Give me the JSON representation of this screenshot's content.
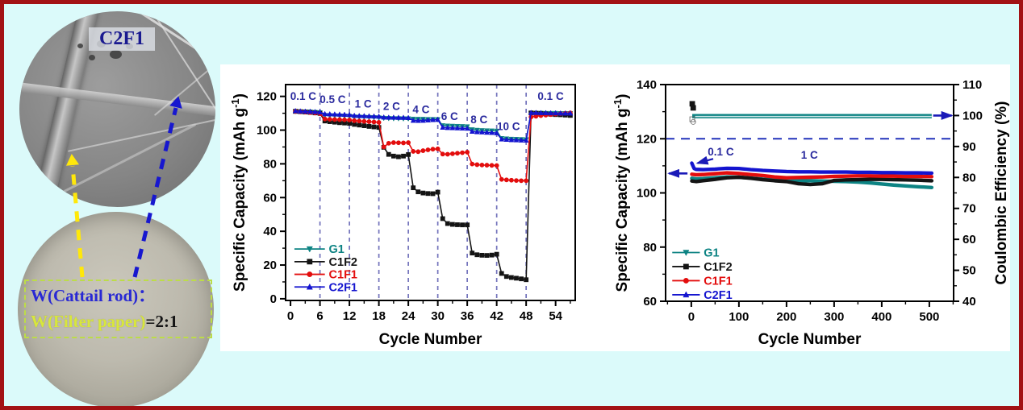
{
  "left_panel": {
    "sem_label": "C2F1",
    "ratio_line1": "W(Cattail rod)：",
    "ratio_line2_colored": "W(Filter paper)",
    "ratio_line2_suffix": "=2:1",
    "colors": {
      "sem_label_text": "#1a1a90",
      "line1": "#2929d4",
      "line2": "#d8e73c",
      "suffix": "#141414",
      "box_border": "#bcdc48",
      "arrow_yellow": "#ffe80a",
      "arrow_blue": "#1717cf"
    }
  },
  "frame": {
    "background": "#dbfafa",
    "border": "#a21114",
    "panel": "#ffffff"
  },
  "chart_data": [
    {
      "id": "rate-capability",
      "type": "line",
      "xlabel": "Cycle Number",
      "ylabel": "Specific Capacity (mAh g⁻¹)",
      "xlim": [
        -1,
        58
      ],
      "ylim": [
        -1,
        127
      ],
      "xticks": [
        0,
        6,
        12,
        18,
        24,
        30,
        36,
        42,
        48,
        54
      ],
      "yticks": [
        0,
        20,
        40,
        60,
        80,
        100,
        120
      ],
      "x_minor": 3,
      "y_minor": 10,
      "grid": false,
      "dashed_vlines": [
        6,
        12,
        18,
        24,
        30,
        36,
        42,
        48
      ],
      "vline_color": "#7272bb",
      "rate_label_color": "#2a2a9e",
      "rate_labels": [
        {
          "text": "0.1 C",
          "x": 2.6,
          "y": 118
        },
        {
          "text": "0.5 C",
          "x": 8.6,
          "y": 116
        },
        {
          "text": "1 C",
          "x": 14.8,
          "y": 113.5
        },
        {
          "text": "2 C",
          "x": 20.6,
          "y": 112
        },
        {
          "text": "4 C",
          "x": 26.6,
          "y": 110
        },
        {
          "text": "6 C",
          "x": 32.4,
          "y": 106
        },
        {
          "text": "8 C",
          "x": 38.4,
          "y": 104
        },
        {
          "text": "10 C",
          "x": 44.4,
          "y": 100
        },
        {
          "text": "0.1 C",
          "x": 53,
          "y": 118
        }
      ],
      "legend": {
        "position": "bottom-left",
        "entries": [
          "G1",
          "C1F2",
          "C1F1",
          "C2F1"
        ]
      },
      "series": [
        {
          "name": "G1",
          "color": "#0d8383",
          "marker": "v",
          "start_x": 1,
          "values": [
            111.2,
            111.0,
            110.9,
            110.8,
            110.6,
            110.4,
            108.8,
            108.7,
            108.6,
            108.5,
            108.4,
            108.3,
            107.9,
            107.8,
            107.7,
            107.6,
            107.5,
            107.4,
            107.1,
            107.0,
            106.9,
            106.9,
            106.8,
            106.8,
            106.6,
            106.5,
            106.5,
            106.4,
            106.4,
            106.3,
            102.7,
            102.5,
            102.4,
            102.3,
            102.2,
            102.1,
            100.3,
            100.0,
            99.8,
            99.7,
            99.6,
            99.5,
            95.1,
            94.9,
            94.7,
            94.6,
            94.5,
            94.4,
            110.0,
            110.1,
            110.1,
            110.0,
            110.0,
            110.0,
            109.9,
            109.9,
            109.9
          ]
        },
        {
          "name": "C1F2",
          "color": "#141414",
          "marker": "s",
          "start_x": 1,
          "values": [
            111.1,
            110.9,
            110.7,
            110.5,
            110.2,
            109.9,
            105.4,
            105.0,
            104.7,
            104.4,
            104.2,
            104.0,
            103.4,
            103.0,
            102.6,
            102.2,
            101.9,
            101.6,
            89.8,
            85.6,
            84.6,
            84.2,
            84.6,
            85.5,
            65.8,
            63.4,
            62.7,
            62.4,
            62.3,
            63.2,
            47.5,
            44.6,
            44.1,
            43.9,
            43.8,
            43.8,
            27.1,
            26.1,
            25.8,
            25.7,
            25.9,
            26.4,
            15.0,
            13.2,
            12.6,
            12.2,
            11.8,
            11.3,
            110.2,
            110.0,
            109.8,
            109.6,
            109.4,
            109.2,
            109.1,
            108.9,
            108.7
          ]
        },
        {
          "name": "C1F1",
          "color": "#e30d0d",
          "marker": "o",
          "start_x": 1,
          "values": [
            111.1,
            110.9,
            110.7,
            110.4,
            110.1,
            109.8,
            106.6,
            106.4,
            106.3,
            106.2,
            106.1,
            106.0,
            105.6,
            105.4,
            105.2,
            105.0,
            104.8,
            104.6,
            90.0,
            92.2,
            92.6,
            92.5,
            92.4,
            92.6,
            87.4,
            87.2,
            87.8,
            88.3,
            88.7,
            88.9,
            85.8,
            85.7,
            86.0,
            86.3,
            86.6,
            86.9,
            79.9,
            79.5,
            79.3,
            79.2,
            79.1,
            79.0,
            70.8,
            70.5,
            70.3,
            70.1,
            70.0,
            70.0,
            107.8,
            108.2,
            108.6,
            108.9,
            109.2,
            109.5,
            109.8,
            110.0,
            110.2
          ]
        },
        {
          "name": "C2F1",
          "color": "#1414cf",
          "marker": "^",
          "start_x": 1,
          "values": [
            111.4,
            111.2,
            111.1,
            111.0,
            110.8,
            110.6,
            109.6,
            109.5,
            109.4,
            109.3,
            109.2,
            109.1,
            108.6,
            108.5,
            108.4,
            108.3,
            108.2,
            108.1,
            107.6,
            107.5,
            107.5,
            107.4,
            107.4,
            107.3,
            105.7,
            105.6,
            105.7,
            105.9,
            106.1,
            106.2,
            101.6,
            101.4,
            101.3,
            101.2,
            101.1,
            101.0,
            99.2,
            98.9,
            98.8,
            98.6,
            98.5,
            98.3,
            94.6,
            94.4,
            94.2,
            94.1,
            94.0,
            93.9,
            110.3,
            110.3,
            110.2,
            110.2,
            110.1,
            110.1,
            110.0,
            110.0,
            110.0
          ]
        }
      ]
    },
    {
      "id": "cycling-stability",
      "type": "line",
      "xlabel": "Cycle Number",
      "ylabel": "Specific Capacity (mAh g⁻¹)",
      "ylabel_right": "Coulombic Efficiency (%)",
      "xlim": [
        -54,
        551
      ],
      "ylim": [
        60,
        140
      ],
      "ylim_right": [
        40,
        110
      ],
      "xticks": [
        0,
        100,
        200,
        300,
        400,
        500
      ],
      "yticks": [
        60,
        80,
        100,
        120,
        140
      ],
      "yticks_right": [
        40,
        50,
        60,
        70,
        80,
        90,
        100,
        110
      ],
      "x_minor": 50,
      "y_minor": 10,
      "y_minor_right": 5,
      "grid": false,
      "dashed_hline_y": 120,
      "hline_color": "#2233bb",
      "annotation_color": "#2a2a9e",
      "annotations": [
        {
          "text": "0.1 C",
          "x": 62,
          "y": 113.8
        },
        {
          "text": "1 C",
          "x": 248,
          "y": 112.6
        }
      ],
      "annot_arrow": {
        "x1": 46,
        "y1": 112.6,
        "x2": 13,
        "y2": 111.0
      },
      "axis_arrow_left": {
        "x1": -8,
        "x2": -47,
        "y": 107.2
      },
      "axis_arrow_right_ce": {
        "x1": 508,
        "x2": 547,
        "ce": 100
      },
      "arrow_color": "#1a1ab8",
      "ce_band": {
        "label": "Coulombic Efficiency ~100%",
        "color": "#0d8383",
        "inner_color": "#cfe9e9",
        "ce": 99.8,
        "x1": 2,
        "x2": 505
      },
      "first_cycle_outliers": [
        {
          "x": 2,
          "y": 132.9,
          "marker": "s",
          "stroke": "#141414",
          "fill": "#141414"
        },
        {
          "x": 4,
          "y": 131.4,
          "marker": "s",
          "stroke": "#141414",
          "fill": "#141414"
        },
        {
          "x": 2,
          "y": 127.2,
          "marker": "s",
          "stroke": "#666666",
          "fill": "none"
        },
        {
          "x": 4,
          "y": 126.2,
          "marker": "o",
          "stroke": "#666666",
          "fill": "none"
        }
      ],
      "legend": {
        "position": "bottom-left",
        "entries": [
          "G1",
          "C1F2",
          "C1F1",
          "C2F1"
        ]
      },
      "series": [
        {
          "name": "G1",
          "color": "#0d8383",
          "x": [
            1,
            10,
            25,
            50,
            75,
            100,
            125,
            150,
            175,
            200,
            225,
            250,
            275,
            300,
            325,
            350,
            375,
            400,
            425,
            450,
            475,
            505
          ],
          "y": [
            105.4,
            105.2,
            105.3,
            105.6,
            105.9,
            105.8,
            105.5,
            105.1,
            104.8,
            104.7,
            104.6,
            104.5,
            104.4,
            104.3,
            104.2,
            104.0,
            103.7,
            103.3,
            102.9,
            102.6,
            102.3,
            102.0
          ]
        },
        {
          "name": "C1F2",
          "color": "#141414",
          "x": [
            1,
            10,
            25,
            50,
            75,
            100,
            125,
            150,
            175,
            200,
            225,
            250,
            275,
            300,
            325,
            350,
            375,
            400,
            425,
            450,
            475,
            505
          ],
          "y": [
            104.4,
            104.2,
            104.5,
            105.0,
            105.6,
            105.8,
            105.4,
            104.9,
            104.5,
            104.2,
            103.4,
            103.1,
            103.4,
            104.6,
            104.8,
            104.9,
            105.0,
            105.0,
            104.9,
            104.8,
            104.7,
            104.5
          ]
        },
        {
          "name": "C1F1",
          "color": "#e30d0d",
          "x": [
            1,
            10,
            25,
            50,
            75,
            100,
            125,
            150,
            175,
            200,
            225,
            250,
            275,
            300,
            325,
            350,
            375,
            400,
            425,
            450,
            475,
            505
          ],
          "y": [
            106.9,
            106.7,
            106.8,
            107.1,
            107.4,
            107.2,
            106.8,
            106.4,
            105.9,
            105.6,
            105.7,
            105.8,
            105.9,
            106.1,
            106.2,
            106.3,
            106.3,
            106.2,
            106.2,
            106.1,
            106.1,
            106.0
          ]
        },
        {
          "name": "C2F1",
          "color": "#1414cf",
          "x": [
            1,
            3,
            6,
            10,
            25,
            50,
            75,
            100,
            125,
            150,
            175,
            200,
            225,
            250,
            275,
            300,
            325,
            350,
            375,
            400,
            425,
            450,
            475,
            505
          ],
          "y": [
            111.0,
            110.2,
            109.0,
            108.7,
            108.6,
            108.8,
            109.1,
            109.0,
            108.6,
            108.3,
            108.1,
            107.9,
            107.8,
            107.8,
            107.7,
            107.7,
            107.7,
            107.6,
            107.6,
            107.5,
            107.5,
            107.4,
            107.4,
            107.3
          ]
        }
      ]
    }
  ]
}
